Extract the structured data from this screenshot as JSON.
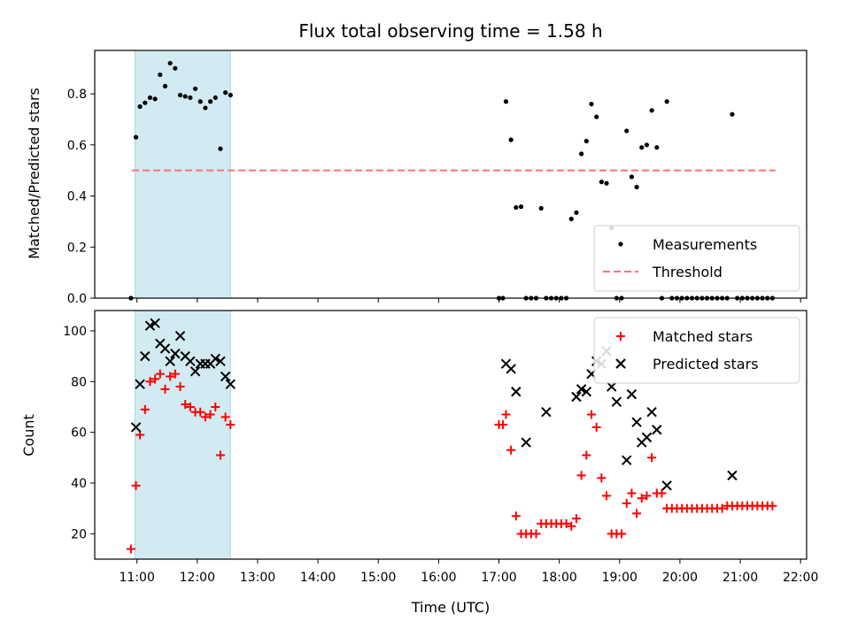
{
  "colors": {
    "measurement": "#000000",
    "threshold": "#ff7070",
    "matched": "#ff0000",
    "predicted": "#000000",
    "window": "#add8e6"
  },
  "chart_data": [
    {
      "type": "scatter",
      "title": "Flux total observing time = 1.58 h",
      "xlabel": "",
      "ylabel": "Matched/Predicted stars",
      "xlim": [
        "10:18",
        "22:06"
      ],
      "ylim": [
        0,
        0.97
      ],
      "yticks": [
        "0.0",
        "0.2",
        "0.4",
        "0.6",
        "0.8"
      ],
      "highlight_window": [
        "10:58",
        "12:33"
      ],
      "threshold": {
        "name": "Threshold",
        "y": 0.5,
        "x": [
          "10:55",
          "21:35"
        ],
        "style": "dashed"
      },
      "legend_position": "lower right",
      "series": [
        {
          "name": "Measurements",
          "marker": "dot",
          "points": [
            [
              "10:54",
              0.0
            ],
            [
              "10:59",
              0.63
            ],
            [
              "11:03",
              0.75
            ],
            [
              "11:08",
              0.765
            ],
            [
              "11:13",
              0.785
            ],
            [
              "11:18",
              0.78
            ],
            [
              "11:23",
              0.875
            ],
            [
              "11:28",
              0.83
            ],
            [
              "11:33",
              0.92
            ],
            [
              "11:38",
              0.9
            ],
            [
              "11:43",
              0.795
            ],
            [
              "11:48",
              0.79
            ],
            [
              "11:53",
              0.785
            ],
            [
              "11:58",
              0.82
            ],
            [
              "12:03",
              0.77
            ],
            [
              "12:08",
              0.745
            ],
            [
              "12:13",
              0.77
            ],
            [
              "12:18",
              0.785
            ],
            [
              "12:23",
              0.585
            ],
            [
              "12:28",
              0.805
            ],
            [
              "12:33",
              0.795
            ],
            [
              "17:00",
              0.0
            ],
            [
              "17:04",
              0.0
            ],
            [
              "17:07",
              0.77
            ],
            [
              "17:12",
              0.62
            ],
            [
              "17:17",
              0.355
            ],
            [
              "17:22",
              0.358
            ],
            [
              "17:27",
              0.0
            ],
            [
              "17:32",
              0.0
            ],
            [
              "17:37",
              0.0
            ],
            [
              "17:42",
              0.352
            ],
            [
              "17:47",
              0.0
            ],
            [
              "17:52",
              0.0
            ],
            [
              "17:57",
              0.0
            ],
            [
              "18:02",
              0.0
            ],
            [
              "18:07",
              0.0
            ],
            [
              "18:12",
              0.31
            ],
            [
              "18:17",
              0.335
            ],
            [
              "18:22",
              0.565
            ],
            [
              "18:27",
              0.615
            ],
            [
              "18:32",
              0.76
            ],
            [
              "18:37",
              0.71
            ],
            [
              "18:42",
              0.455
            ],
            [
              "18:47",
              0.45
            ],
            [
              "18:52",
              0.275
            ],
            [
              "18:57",
              0.0
            ],
            [
              "19:02",
              0.0
            ],
            [
              "19:07",
              0.655
            ],
            [
              "19:12",
              0.475
            ],
            [
              "19:17",
              0.435
            ],
            [
              "19:22",
              0.59
            ],
            [
              "19:27",
              0.6
            ],
            [
              "19:32",
              0.735
            ],
            [
              "19:37",
              0.59
            ],
            [
              "19:42",
              0.0
            ],
            [
              "19:47",
              0.77
            ],
            [
              "19:52",
              0.0
            ],
            [
              "19:57",
              0.0
            ],
            [
              "20:02",
              0.0
            ],
            [
              "20:07",
              0.0
            ],
            [
              "20:12",
              0.0
            ],
            [
              "20:17",
              0.0
            ],
            [
              "20:22",
              0.0
            ],
            [
              "20:27",
              0.0
            ],
            [
              "20:32",
              0.0
            ],
            [
              "20:37",
              0.0
            ],
            [
              "20:42",
              0.0
            ],
            [
              "20:47",
              0.0
            ],
            [
              "20:52",
              0.72
            ],
            [
              "20:57",
              0.0
            ],
            [
              "21:02",
              0.0
            ],
            [
              "21:07",
              0.0
            ],
            [
              "21:12",
              0.0
            ],
            [
              "21:17",
              0.0
            ],
            [
              "21:22",
              0.0
            ],
            [
              "21:27",
              0.0
            ],
            [
              "21:32",
              0.0
            ]
          ]
        }
      ]
    },
    {
      "type": "scatter",
      "title": "",
      "xlabel": "Time (UTC)",
      "ylabel": "Count",
      "xlim": [
        "10:18",
        "22:06"
      ],
      "ylim": [
        10,
        108
      ],
      "xticks": [
        "11:00",
        "12:00",
        "13:00",
        "14:00",
        "15:00",
        "16:00",
        "17:00",
        "18:00",
        "19:00",
        "20:00",
        "21:00",
        "22:00"
      ],
      "yticks": [
        "20",
        "40",
        "60",
        "80",
        "100"
      ],
      "highlight_window": [
        "10:58",
        "12:33"
      ],
      "legend_position": "upper right",
      "series": [
        {
          "name": "Matched stars",
          "marker": "plus",
          "points": [
            [
              "10:54",
              14
            ],
            [
              "10:59",
              39
            ],
            [
              "11:03",
              59
            ],
            [
              "11:08",
              69
            ],
            [
              "11:13",
              80
            ],
            [
              "11:18",
              81
            ],
            [
              "11:23",
              83
            ],
            [
              "11:28",
              77
            ],
            [
              "11:33",
              82
            ],
            [
              "11:38",
              83
            ],
            [
              "11:43",
              78
            ],
            [
              "11:48",
              71
            ],
            [
              "11:53",
              70
            ],
            [
              "11:58",
              68
            ],
            [
              "12:03",
              68
            ],
            [
              "12:08",
              66
            ],
            [
              "12:13",
              67
            ],
            [
              "12:18",
              70
            ],
            [
              "12:23",
              51
            ],
            [
              "12:28",
              66
            ],
            [
              "12:33",
              63
            ],
            [
              "17:00",
              63
            ],
            [
              "17:04",
              63
            ],
            [
              "17:07",
              67
            ],
            [
              "17:12",
              53
            ],
            [
              "17:17",
              27
            ],
            [
              "17:22",
              20
            ],
            [
              "17:27",
              20
            ],
            [
              "17:32",
              20
            ],
            [
              "17:37",
              20
            ],
            [
              "17:42",
              24
            ],
            [
              "17:47",
              24
            ],
            [
              "17:52",
              24
            ],
            [
              "17:57",
              24
            ],
            [
              "18:02",
              24
            ],
            [
              "18:07",
              24
            ],
            [
              "18:12",
              23
            ],
            [
              "18:17",
              26
            ],
            [
              "18:22",
              43
            ],
            [
              "18:27",
              51
            ],
            [
              "18:32",
              67
            ],
            [
              "18:37",
              62
            ],
            [
              "18:42",
              42
            ],
            [
              "18:47",
              35
            ],
            [
              "18:52",
              20
            ],
            [
              "18:57",
              20
            ],
            [
              "19:02",
              20
            ],
            [
              "19:07",
              32
            ],
            [
              "19:12",
              36
            ],
            [
              "19:17",
              28
            ],
            [
              "19:22",
              34
            ],
            [
              "19:27",
              35
            ],
            [
              "19:32",
              50
            ],
            [
              "19:37",
              36
            ],
            [
              "19:42",
              36
            ],
            [
              "19:47",
              30
            ],
            [
              "19:52",
              30
            ],
            [
              "19:57",
              30
            ],
            [
              "20:02",
              30
            ],
            [
              "20:07",
              30
            ],
            [
              "20:12",
              30
            ],
            [
              "20:17",
              30
            ],
            [
              "20:22",
              30
            ],
            [
              "20:27",
              30
            ],
            [
              "20:32",
              30
            ],
            [
              "20:37",
              30
            ],
            [
              "20:42",
              30
            ],
            [
              "20:47",
              31
            ],
            [
              "20:52",
              31
            ],
            [
              "20:57",
              31
            ],
            [
              "21:02",
              31
            ],
            [
              "21:07",
              31
            ],
            [
              "21:12",
              31
            ],
            [
              "21:17",
              31
            ],
            [
              "21:22",
              31
            ],
            [
              "21:27",
              31
            ],
            [
              "21:32",
              31
            ]
          ]
        },
        {
          "name": "Predicted stars",
          "marker": "x",
          "points": [
            [
              "10:59",
              62
            ],
            [
              "11:03",
              79
            ],
            [
              "11:08",
              90
            ],
            [
              "11:13",
              102
            ],
            [
              "11:18",
              103
            ],
            [
              "11:23",
              95
            ],
            [
              "11:28",
              93
            ],
            [
              "11:33",
              88
            ],
            [
              "11:38",
              91
            ],
            [
              "11:43",
              98
            ],
            [
              "11:48",
              90
            ],
            [
              "11:53",
              88
            ],
            [
              "11:58",
              84
            ],
            [
              "12:03",
              87
            ],
            [
              "12:08",
              87
            ],
            [
              "12:13",
              87
            ],
            [
              "12:18",
              89
            ],
            [
              "12:23",
              88
            ],
            [
              "12:28",
              82
            ],
            [
              "12:33",
              79
            ],
            [
              "17:07",
              87
            ],
            [
              "17:12",
              85
            ],
            [
              "17:17",
              76
            ],
            [
              "17:27",
              56
            ],
            [
              "17:47",
              68
            ],
            [
              "18:17",
              74
            ],
            [
              "18:22",
              77
            ],
            [
              "18:27",
              76
            ],
            [
              "18:32",
              83
            ],
            [
              "18:37",
              88
            ],
            [
              "18:42",
              87
            ],
            [
              "18:47",
              92
            ],
            [
              "18:52",
              78
            ],
            [
              "18:57",
              72
            ],
            [
              "19:02",
              87
            ],
            [
              "19:07",
              49
            ],
            [
              "19:12",
              75
            ],
            [
              "19:17",
              64
            ],
            [
              "19:22",
              56
            ],
            [
              "19:27",
              58
            ],
            [
              "19:32",
              68
            ],
            [
              "19:37",
              61
            ],
            [
              "19:47",
              39
            ],
            [
              "20:52",
              43
            ]
          ]
        }
      ]
    }
  ]
}
